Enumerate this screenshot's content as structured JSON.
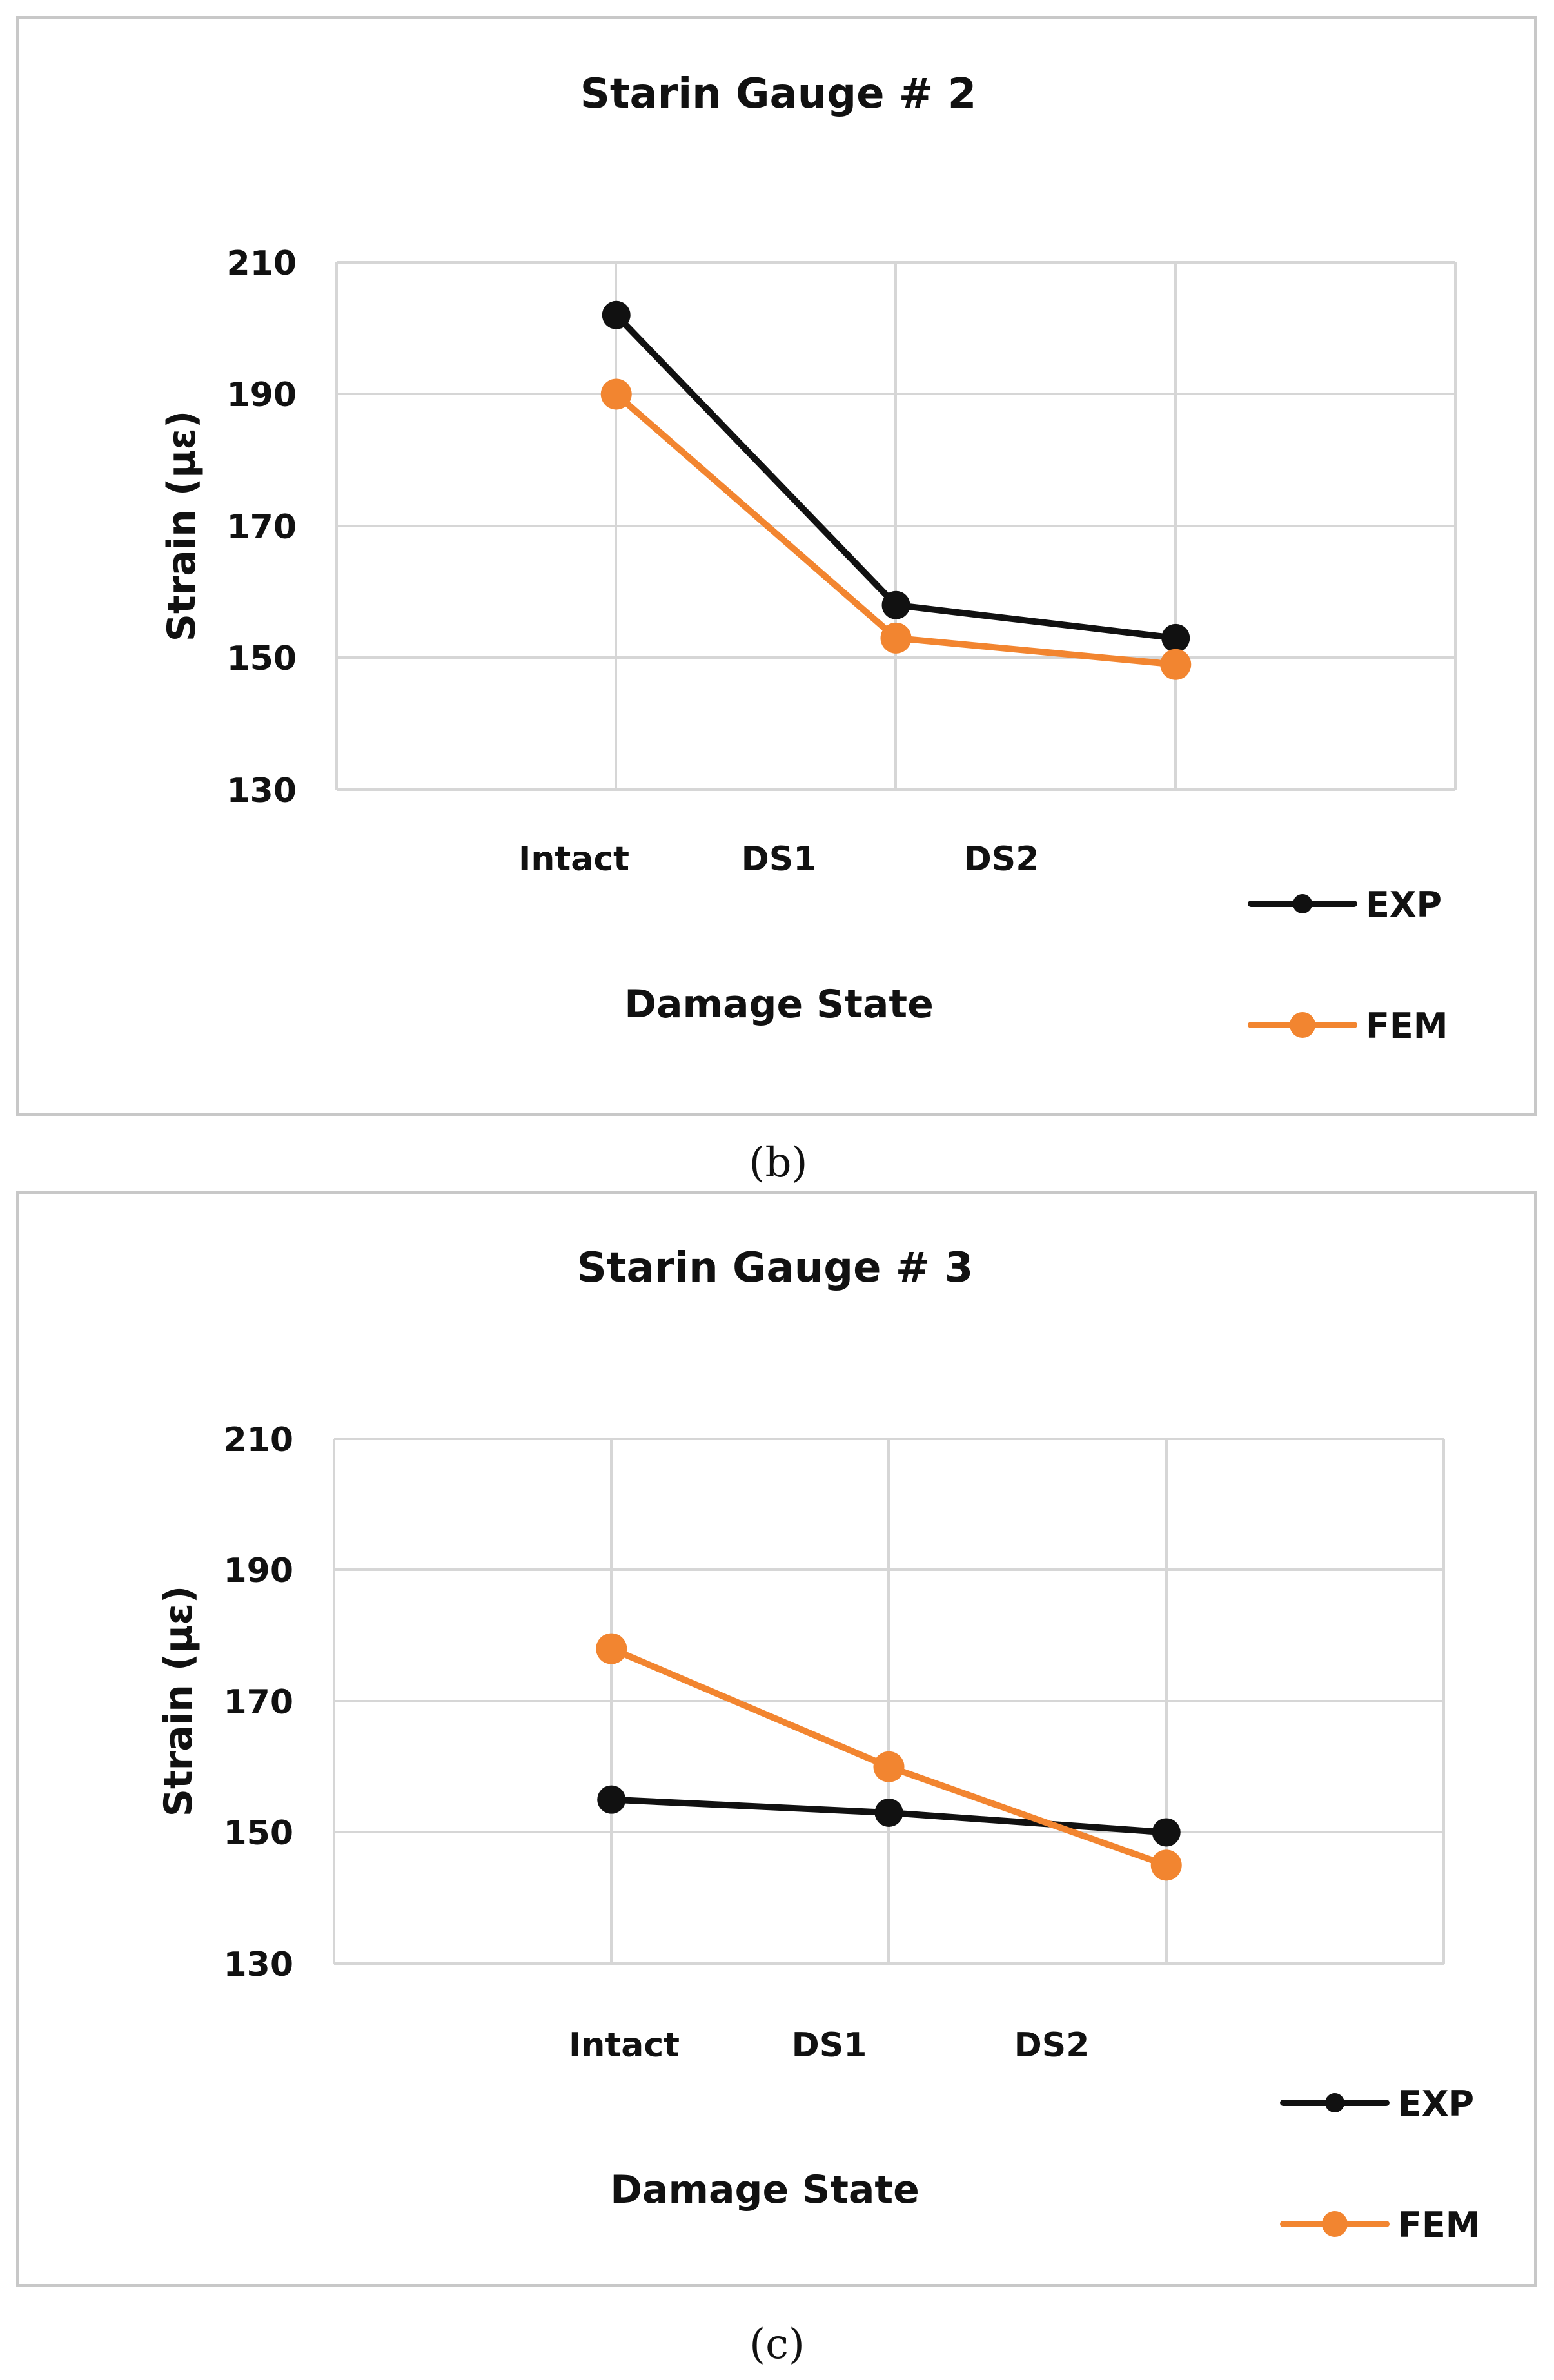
{
  "colors": {
    "exp": "#111111",
    "fem": "#f28530",
    "grid": "#d6d6d6",
    "frame": "#c8c8c8"
  },
  "chart_data": [
    {
      "type": "line",
      "title": "Starin Gauge # 2",
      "xlabel": "Damage State",
      "ylabel": "Strain (με)",
      "categories": [
        "Intact",
        "DS1",
        "DS2"
      ],
      "ylim": [
        130,
        210
      ],
      "yticks": [
        "130",
        "150",
        "170",
        "190",
        "210"
      ],
      "series": [
        {
          "name": "EXP",
          "values": [
            202,
            158,
            153
          ]
        },
        {
          "name": "FEM",
          "values": [
            190,
            153,
            149
          ]
        }
      ],
      "caption": "(b)"
    },
    {
      "type": "line",
      "title": "Starin Gauge # 3",
      "xlabel": "Damage State",
      "ylabel": "Strain (με)",
      "categories": [
        "Intact",
        "DS1",
        "DS2"
      ],
      "ylim": [
        130,
        210
      ],
      "yticks": [
        "130",
        "150",
        "170",
        "190",
        "210"
      ],
      "series": [
        {
          "name": "EXP",
          "values": [
            155,
            153,
            150
          ]
        },
        {
          "name": "FEM",
          "values": [
            178,
            160,
            145
          ]
        }
      ],
      "caption": "(c)"
    }
  ]
}
